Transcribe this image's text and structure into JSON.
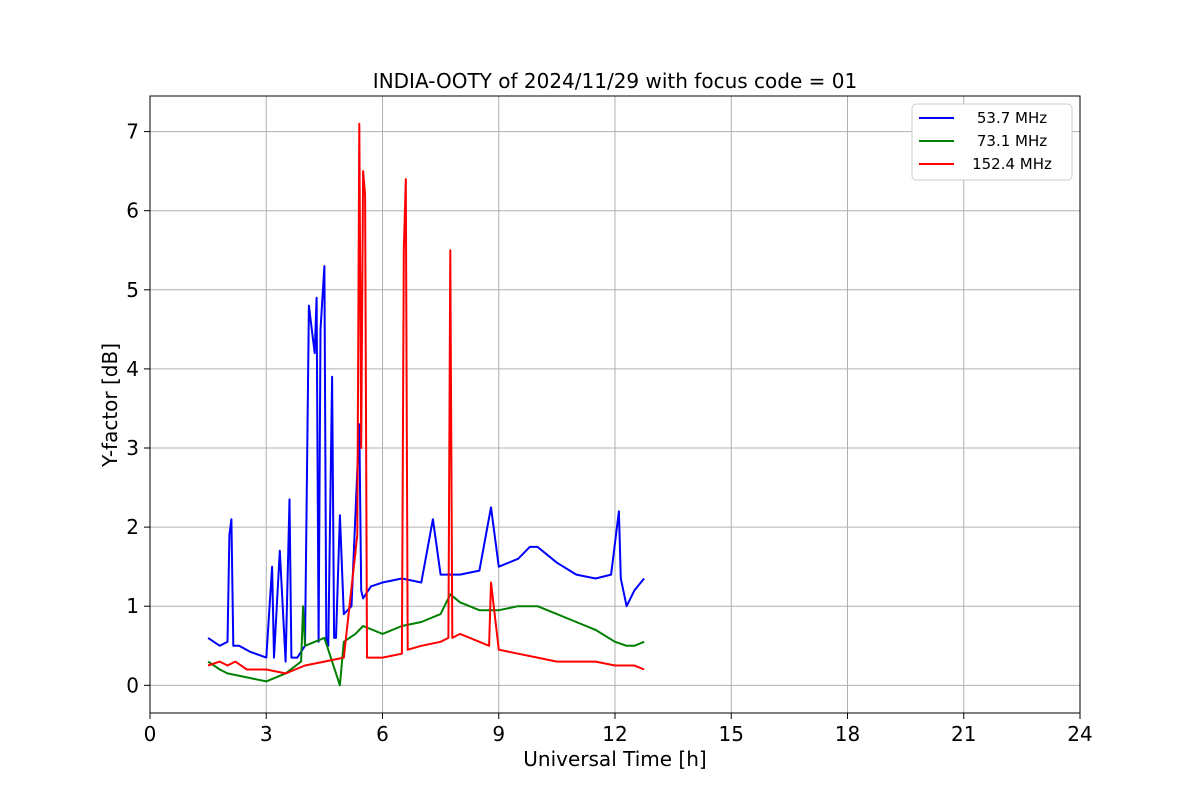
{
  "chart_data": {
    "type": "line",
    "title": "INDIA-OOTY of 2024/11/29 with focus code = 01",
    "xlabel": "Universal Time [h]",
    "ylabel": "Y-factor [dB]",
    "xlim": [
      0,
      24
    ],
    "ylim": [
      -0.35,
      7.45
    ],
    "xticks": [
      0,
      3,
      6,
      9,
      12,
      15,
      18,
      21,
      24
    ],
    "xtick_labels": [
      "0",
      "3",
      "6",
      "9",
      "12",
      "15",
      "18",
      "21",
      "24"
    ],
    "yticks": [
      0,
      1,
      2,
      3,
      4,
      5,
      6,
      7
    ],
    "ytick_labels": [
      "0",
      "1",
      "2",
      "3",
      "4",
      "5",
      "6",
      "7"
    ],
    "grid": true,
    "legend_position": "top-right",
    "series": [
      {
        "name": "53.7 MHz",
        "color": "#0000ff",
        "x": [
          1.5,
          1.8,
          2.0,
          2.05,
          2.1,
          2.15,
          2.3,
          2.6,
          3.0,
          3.15,
          3.2,
          3.35,
          3.5,
          3.6,
          3.65,
          3.8,
          4.0,
          4.1,
          4.15,
          4.25,
          4.3,
          4.35,
          4.4,
          4.5,
          4.55,
          4.6,
          4.7,
          4.75,
          4.8,
          4.9,
          5.0,
          5.2,
          5.4,
          5.45,
          5.5,
          5.7,
          6.0,
          6.5,
          7.0,
          7.3,
          7.5,
          8.0,
          8.5,
          8.8,
          9.0,
          9.5,
          9.8,
          10.0,
          10.5,
          11.0,
          11.5,
          11.9,
          12.1,
          12.15,
          12.3,
          12.5,
          12.75
        ],
        "y": [
          0.6,
          0.5,
          0.55,
          1.9,
          2.1,
          0.5,
          0.5,
          0.42,
          0.35,
          1.5,
          0.35,
          1.7,
          0.3,
          2.35,
          0.35,
          0.35,
          0.5,
          4.8,
          4.6,
          4.2,
          4.9,
          0.55,
          4.5,
          5.3,
          0.6,
          0.5,
          3.9,
          0.6,
          0.6,
          2.15,
          0.9,
          1.0,
          3.3,
          1.2,
          1.1,
          1.25,
          1.3,
          1.35,
          1.3,
          2.1,
          1.4,
          1.4,
          1.45,
          2.25,
          1.5,
          1.6,
          1.75,
          1.75,
          1.55,
          1.4,
          1.35,
          1.4,
          2.2,
          1.35,
          1.0,
          1.2,
          1.35
        ]
      },
      {
        "name": "73.1 MHz",
        "color": "#008000",
        "x": [
          1.5,
          1.8,
          2.0,
          2.5,
          3.0,
          3.5,
          3.9,
          3.95,
          4.0,
          4.5,
          4.9,
          5.0,
          5.3,
          5.5,
          6.0,
          6.5,
          7.0,
          7.5,
          7.75,
          8.0,
          8.5,
          9.0,
          9.5,
          10.0,
          10.5,
          11.0,
          11.5,
          12.0,
          12.3,
          12.5,
          12.75
        ],
        "y": [
          0.3,
          0.2,
          0.15,
          0.1,
          0.05,
          0.15,
          0.3,
          1.0,
          0.5,
          0.6,
          0.0,
          0.55,
          0.65,
          0.75,
          0.65,
          0.75,
          0.8,
          0.9,
          1.15,
          1.05,
          0.95,
          0.95,
          1.0,
          1.0,
          0.9,
          0.8,
          0.7,
          0.55,
          0.5,
          0.5,
          0.55
        ]
      },
      {
        "name": "152.4 MHz",
        "color": "#ff0000",
        "x": [
          1.5,
          1.8,
          2.0,
          2.2,
          2.5,
          3.0,
          3.5,
          4.0,
          4.5,
          5.0,
          5.35,
          5.4,
          5.45,
          5.5,
          5.55,
          5.6,
          6.0,
          6.5,
          6.55,
          6.6,
          6.65,
          7.0,
          7.5,
          7.7,
          7.75,
          7.8,
          8.0,
          8.5,
          8.75,
          8.8,
          9.0,
          9.5,
          10.0,
          10.5,
          11.0,
          11.5,
          12.0,
          12.5,
          12.75
        ],
        "y": [
          0.25,
          0.3,
          0.25,
          0.3,
          0.2,
          0.2,
          0.15,
          0.25,
          0.3,
          0.35,
          1.9,
          7.1,
          3.0,
          6.5,
          6.2,
          0.35,
          0.35,
          0.4,
          5.5,
          6.4,
          0.45,
          0.5,
          0.55,
          0.6,
          5.5,
          0.6,
          0.65,
          0.55,
          0.5,
          1.3,
          0.45,
          0.4,
          0.35,
          0.3,
          0.3,
          0.3,
          0.25,
          0.25,
          0.2
        ]
      }
    ]
  }
}
